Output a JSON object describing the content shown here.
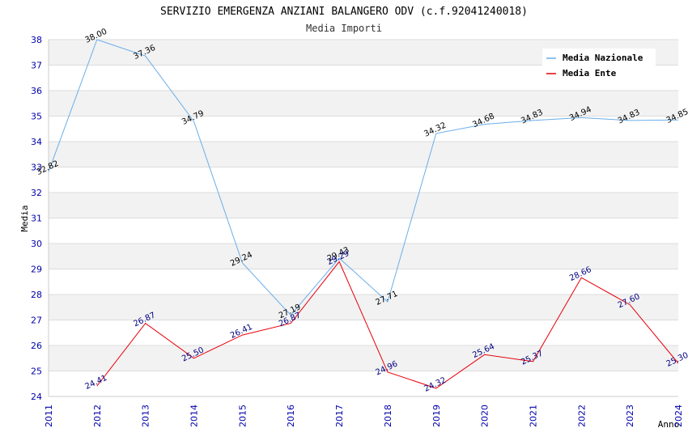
{
  "chart_data": {
    "type": "line",
    "title": "SERVIZIO EMERGENZA ANZIANI BALANGERO ODV (c.f.92041240018)",
    "subtitle": "Media Importi",
    "xlabel": "Anno",
    "ylabel": "Media",
    "ylim": [
      24,
      38
    ],
    "yticks": [
      "24",
      "25",
      "26",
      "27",
      "28",
      "29",
      "30",
      "31",
      "32",
      "33",
      "34",
      "35",
      "36",
      "37",
      "38"
    ],
    "x": [
      "2011",
      "2012",
      "2013",
      "2014",
      "2015",
      "2016",
      "2017",
      "2018",
      "2019",
      "2020",
      "2021",
      "2022",
      "2023",
      "2024"
    ],
    "legend_position": "top-right",
    "series": [
      {
        "name": "Media Nazionale",
        "color": "#6aaee8",
        "values": [
          32.82,
          38.0,
          37.36,
          34.79,
          29.24,
          27.19,
          29.43,
          27.71,
          34.32,
          34.68,
          34.83,
          34.94,
          34.83,
          34.85
        ],
        "labels": [
          "32.82",
          "38.00",
          "37.36",
          "34.79",
          "29.24",
          "27.19",
          "29.43",
          "27.71",
          "34.32",
          "34.68",
          "34.83",
          "34.94",
          "34.83",
          "34.85"
        ]
      },
      {
        "name": "Media Ente",
        "color": "#e8000b",
        "values": [
          null,
          24.41,
          26.87,
          25.5,
          26.41,
          26.87,
          29.29,
          24.96,
          24.32,
          25.64,
          25.37,
          28.66,
          27.6,
          25.3
        ],
        "labels": [
          null,
          "24.41",
          "26.87",
          "25.50",
          "26.41",
          "26.87",
          "29.29",
          "24.96",
          "24.32",
          "25.64",
          "25.37",
          "28.66",
          "27.60",
          "25.30"
        ]
      }
    ]
  }
}
